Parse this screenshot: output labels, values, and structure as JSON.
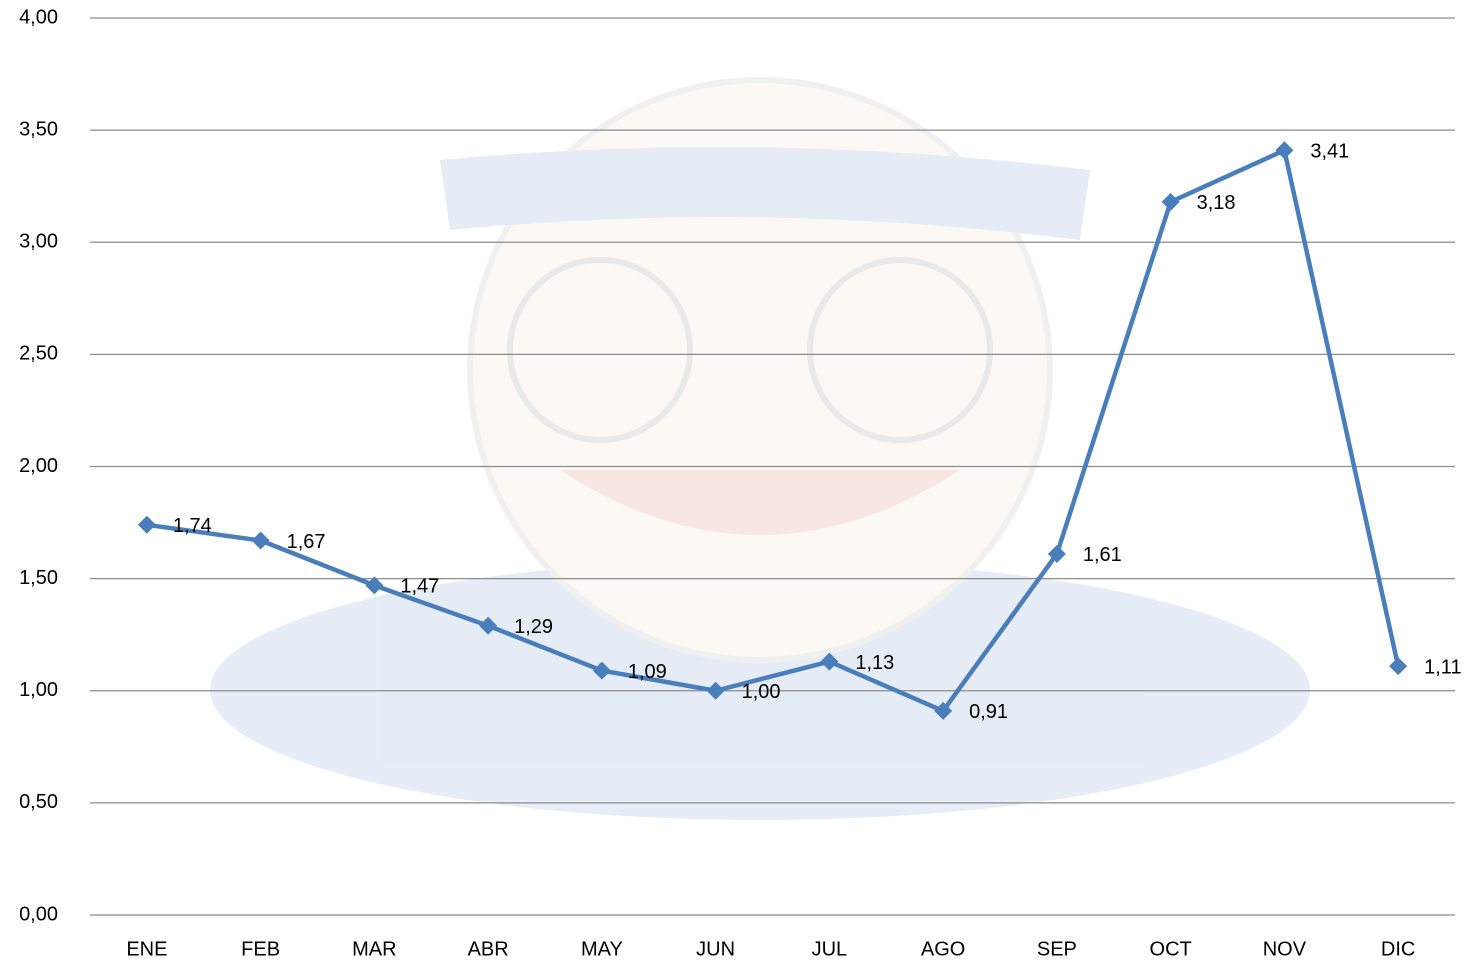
{
  "chart_data": {
    "type": "line",
    "categories": [
      "ENE",
      "FEB",
      "MAR",
      "ABR",
      "MAY",
      "JUN",
      "JUL",
      "AGO",
      "SEP",
      "OCT",
      "NOV",
      "DIC"
    ],
    "values": [
      1.74,
      1.67,
      1.47,
      1.29,
      1.09,
      1.0,
      1.13,
      0.91,
      1.61,
      3.18,
      3.41,
      1.11
    ],
    "value_labels": [
      "1,74",
      "1,67",
      "1,47",
      "1,29",
      "1,09",
      "1,00",
      "1,13",
      "0,91",
      "1,61",
      "3,18",
      "3,41",
      "1,11"
    ],
    "color": "#4a7ebb",
    "ylim": [
      0,
      4
    ],
    "yticks": [
      {
        "value": 0,
        "label": "0,00"
      },
      {
        "value": 0.5,
        "label": "0,50"
      },
      {
        "value": 1,
        "label": "1,00"
      },
      {
        "value": 1.5,
        "label": "1,50"
      },
      {
        "value": 2,
        "label": "2,00"
      },
      {
        "value": 2.5,
        "label": "2,50"
      },
      {
        "value": 3,
        "label": "3,00"
      },
      {
        "value": 3.5,
        "label": "3,50"
      },
      {
        "value": 4,
        "label": "4,00"
      }
    ],
    "grid": true
  }
}
